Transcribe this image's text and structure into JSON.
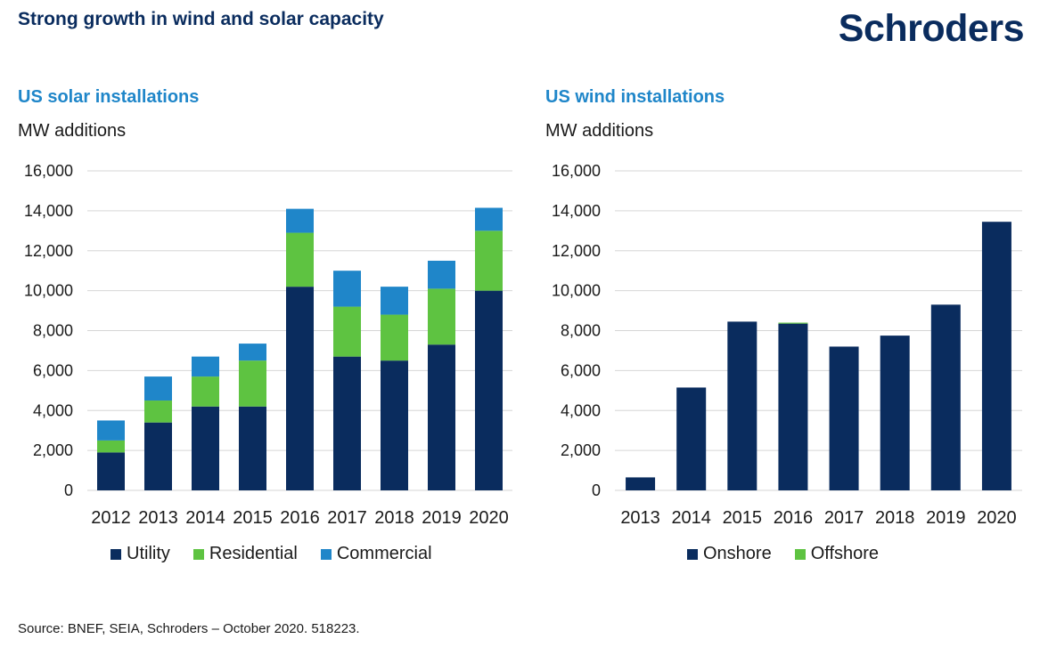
{
  "header": {
    "title": "Strong growth in wind and solar capacity",
    "logo_text": "Schroders"
  },
  "source": "Source: BNEF, SEIA, Schroders – October 2020. 518223.",
  "colors": {
    "utility": "#0a2c5e",
    "residential": "#5ec341",
    "commercial": "#1f86c9",
    "onshore": "#0a2c5e",
    "offshore": "#5ec341",
    "grid": "#d6d6d6"
  },
  "chart_data": [
    {
      "type": "bar",
      "stacked": true,
      "title": "US solar installations",
      "ylabel": "MW additions",
      "ylim": [
        0,
        16000
      ],
      "yticks": [
        0,
        2000,
        4000,
        6000,
        8000,
        10000,
        12000,
        14000,
        16000
      ],
      "ytick_labels": [
        "0",
        "2,000",
        "4,000",
        "6,000",
        "8,000",
        "10,000",
        "12,000",
        "14,000",
        "16,000"
      ],
      "categories": [
        "2012",
        "2013",
        "2014",
        "2015",
        "2016",
        "2017",
        "2018",
        "2019",
        "2020"
      ],
      "series": [
        {
          "name": "Utility",
          "values": [
            1900,
            3400,
            4200,
            4200,
            10200,
            6700,
            6500,
            7300,
            10000
          ]
        },
        {
          "name": "Residential",
          "values": [
            600,
            1100,
            1500,
            2300,
            2700,
            2500,
            2300,
            2800,
            3000
          ]
        },
        {
          "name": "Commercial",
          "values": [
            1000,
            1200,
            1000,
            850,
            1200,
            1800,
            1400,
            1400,
            1150
          ]
        }
      ],
      "grid": true,
      "legend": "bottom"
    },
    {
      "type": "bar",
      "stacked": true,
      "title": "US wind installations",
      "ylabel": "MW additions",
      "ylim": [
        0,
        16000
      ],
      "yticks": [
        0,
        2000,
        4000,
        6000,
        8000,
        10000,
        12000,
        14000,
        16000
      ],
      "ytick_labels": [
        "0",
        "2,000",
        "4,000",
        "6,000",
        "8,000",
        "10,000",
        "12,000",
        "14,000",
        "16,000"
      ],
      "categories": [
        "2013",
        "2014",
        "2015",
        "2016",
        "2017",
        "2018",
        "2019",
        "2020"
      ],
      "series": [
        {
          "name": "Onshore",
          "values": [
            650,
            5150,
            8450,
            8350,
            7200,
            7750,
            9300,
            13450
          ]
        },
        {
          "name": "Offshore",
          "values": [
            0,
            0,
            0,
            50,
            0,
            0,
            0,
            0
          ]
        }
      ],
      "grid": true,
      "legend": "bottom"
    }
  ]
}
